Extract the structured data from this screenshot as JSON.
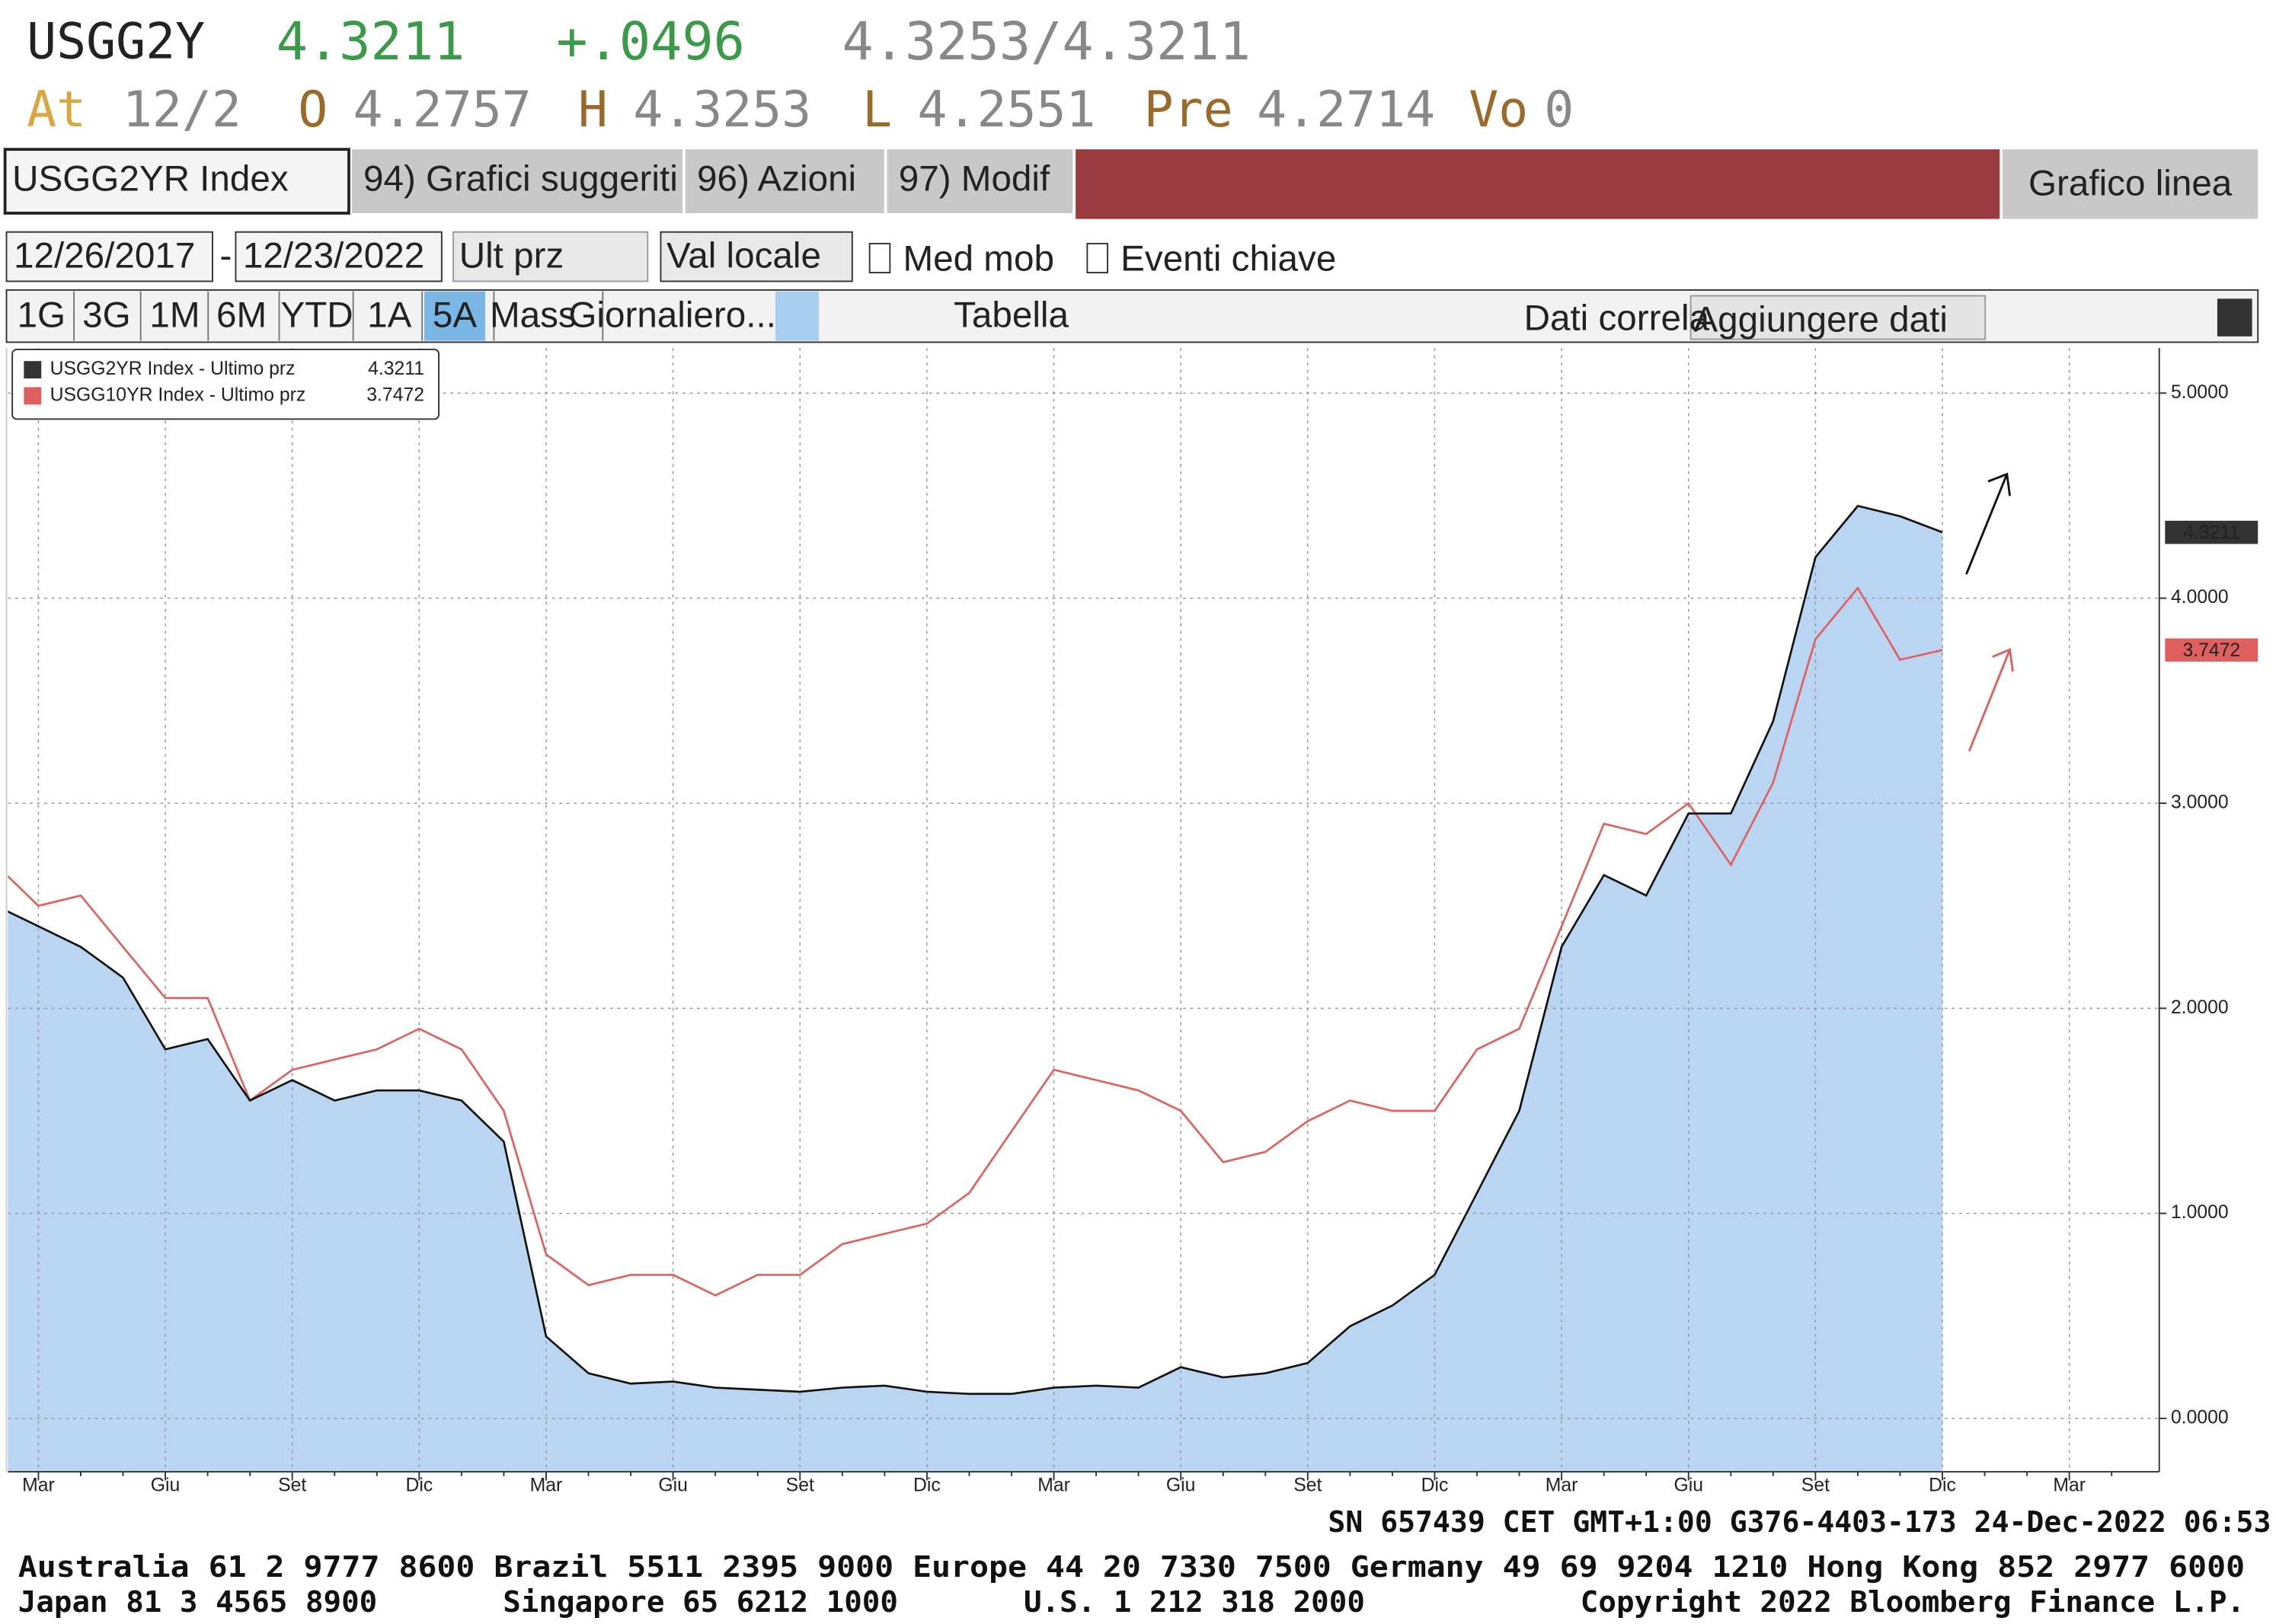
{
  "header": {
    "ticker": "USGG2Y",
    "last": "4.3211",
    "change": "+.0496",
    "quote": "4.3253/4.3211",
    "at_label": "At",
    "at": "12/2",
    "open_label": "O",
    "open": "4.2757",
    "high_label": "H",
    "high": "4.3253",
    "low_label": "L",
    "low": "4.2551",
    "pre_label": "Pre",
    "pre": "4.2714",
    "vol_label": "Vo",
    "vol": "0"
  },
  "toolbar": {
    "security": "USGG2YR Index",
    "menu": [
      "94) Grafici suggeriti",
      "96) Azioni",
      "97) Modif"
    ],
    "chart_type": "Grafico linea",
    "start_date": "12/26/2017",
    "date_sep": "-",
    "end_date": "12/23/2022",
    "field": "Ult prz",
    "currency": "Val locale",
    "moving_avg": "Med mob",
    "key_events": "Eventi chiave",
    "periods": [
      "1G",
      "3G",
      "1M",
      "6M",
      "YTD",
      "1A",
      "5A",
      "Mass",
      "Giornaliero..."
    ],
    "table": "Tabella",
    "correlation": "Dati correla",
    "add_data": "Aggiungere dati"
  },
  "chart_data": {
    "type": "area-line",
    "categories": [
      null,
      "Mar",
      null,
      null,
      "Giu",
      null,
      null,
      "Set",
      null,
      null,
      "Dic",
      null,
      null,
      "Mar",
      null,
      null,
      "Giu",
      null,
      null,
      "Set",
      null,
      null,
      "Dic",
      null,
      null,
      "Mar",
      null,
      null,
      "Giu",
      null,
      null,
      "Set",
      null,
      null,
      "Dic",
      null,
      null,
      "Mar",
      null,
      null,
      "Giu",
      null,
      null,
      "Set",
      null,
      null,
      "Dic",
      null,
      null,
      "Mar",
      null
    ],
    "series": [
      {
        "name": "USGG2YR Index - Ultimo prz",
        "color": "#111111",
        "fill": "#b9d5f1",
        "values": [
          2.5,
          2.4,
          2.3,
          2.15,
          1.8,
          1.85,
          1.55,
          1.65,
          1.55,
          1.6,
          1.6,
          1.55,
          1.35,
          0.4,
          0.22,
          0.17,
          0.18,
          0.15,
          0.14,
          0.13,
          0.15,
          0.16,
          0.13,
          0.12,
          0.12,
          0.15,
          0.16,
          0.15,
          0.25,
          0.2,
          0.22,
          0.27,
          0.45,
          0.55,
          0.7,
          1.1,
          1.5,
          2.3,
          2.65,
          2.55,
          2.95,
          2.95,
          3.4,
          4.2,
          4.45,
          4.4,
          4.3211,
          null,
          null,
          null,
          null
        ]
      },
      {
        "name": "USGG10YR Index - Ultimo prz",
        "color": "#e06060",
        "values": [
          2.7,
          2.5,
          2.55,
          2.3,
          2.05,
          2.05,
          1.55,
          1.7,
          1.75,
          1.8,
          1.9,
          1.8,
          1.5,
          0.8,
          0.65,
          0.7,
          0.7,
          0.6,
          0.7,
          0.7,
          0.85,
          0.9,
          0.95,
          1.1,
          1.4,
          1.7,
          1.65,
          1.6,
          1.5,
          1.25,
          1.3,
          1.45,
          1.55,
          1.5,
          1.5,
          1.8,
          1.9,
          2.4,
          2.9,
          2.85,
          3.0,
          2.7,
          3.1,
          3.8,
          4.05,
          3.7,
          3.7472,
          null,
          null,
          null,
          null
        ]
      }
    ],
    "ylim": [
      -0.26,
      5.22
    ],
    "yticks": [
      {
        "value": 0,
        "label": "0.0000"
      },
      {
        "value": 1,
        "label": "1.0000"
      },
      {
        "value": 2,
        "label": "2.0000"
      },
      {
        "value": 3,
        "label": "3.0000"
      },
      {
        "value": 4,
        "label": "4.0000"
      },
      {
        "value": 5,
        "label": "5.0000"
      }
    ],
    "grid": true,
    "legend": "upper left"
  },
  "footer": {
    "status": "SN 657439 CET  GMT+1:00 G376-4403-173 24-Dec-2022 06:53",
    "line1": "Australia 61 2 9777 8600 Brazil 5511 2395 9000 Europe 44 20 7330 7500 Germany 49 69 9204 1210 Hong Kong 852 2977 6000",
    "line2": "Japan 81 3 4565 8900       Singapore 65 6212 1000       U.S. 1 212 318 2000            Copyright 2022 Bloomberg Finance L.P."
  }
}
